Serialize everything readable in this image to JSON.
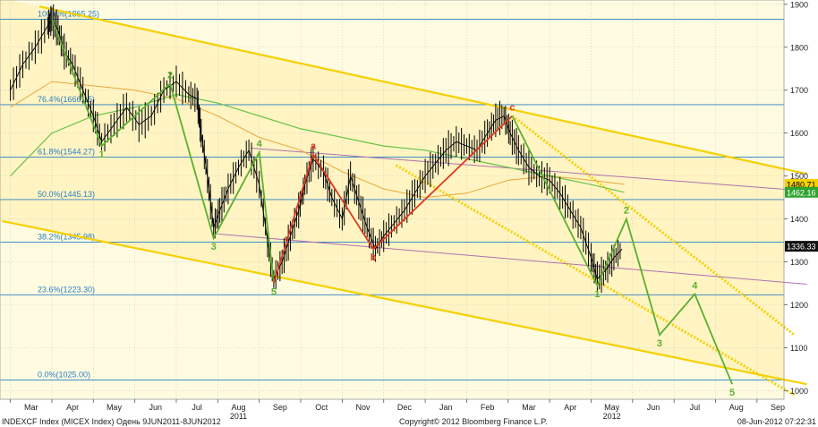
{
  "colors": {
    "background": "#fffbe0",
    "channel_fill": "#fff2b8",
    "channel_line": "#f5d000",
    "fib_line": "#2a7fc4",
    "fib_text": "#2a7fc4",
    "grid": "#c8c8c8",
    "price": "#000000",
    "impulse_wave": "#5ab02e",
    "corrective_wave": "#e03a20",
    "ma_green": "#6ac24a",
    "ma_orange": "#e8a838",
    "trend_purple": "#b070b0",
    "label_dark": "#ffffff",
    "label_dark_bg": "#111111",
    "label_green_bg": "#2fa32f",
    "label_yellow_bg": "#f5d000"
  },
  "chart_data": {
    "type": "line",
    "title": "",
    "ylim": [
      980,
      1910
    ],
    "y_ticks": [
      "1900",
      "1800",
      "1700",
      "1600",
      "1500",
      "1400",
      "1300",
      "1200",
      "1100",
      "1000"
    ],
    "x_tick_labels": [
      "Mar",
      "Apr",
      "May",
      "Jun",
      "Jul",
      "Aug",
      "Sep",
      "Oct",
      "Nov",
      "Dec",
      "Jan",
      "Feb",
      "Mar",
      "Apr",
      "May",
      "Jun",
      "Jul",
      "Aug",
      "Sep"
    ],
    "x_tick_months": [
      0,
      1,
      2,
      3,
      4,
      5,
      6,
      7,
      8,
      9,
      10,
      11,
      12,
      13,
      14,
      15,
      16,
      17,
      18
    ],
    "year_labels": [
      {
        "label": "2011",
        "month": 5
      },
      {
        "label": "2012",
        "month": 14
      }
    ],
    "fib_levels": [
      {
        "label": "100.0%(1865.25)",
        "value": 1865.25
      },
      {
        "label": "76.4%(1666.15)",
        "value": 1666.15
      },
      {
        "label": "61.8%(1544.27)",
        "value": 1544.27
      },
      {
        "label": "50.0%(1445.13)",
        "value": 1445.13
      },
      {
        "label": "38.2%(1345.98)",
        "value": 1345.98
      },
      {
        "label": "23.6%(1223.30)",
        "value": 1223.3
      },
      {
        "label": "0.0%(1025.00)",
        "value": 1025.0
      }
    ],
    "price_labels": [
      {
        "label": "1480.71",
        "value": 1480.71,
        "style": "yellow"
      },
      {
        "label": "1462.16",
        "value": 1462.16,
        "style": "green"
      },
      {
        "label": "1336.33",
        "value": 1336.33,
        "style": "dark"
      }
    ],
    "series": [
      {
        "x": [
          0.0,
          0.3,
          0.6,
          0.9,
          1.0,
          1.15,
          1.3,
          1.5,
          1.75,
          2.0,
          2.2,
          2.5,
          2.8,
          3.1,
          3.4,
          3.7,
          4.0,
          4.3,
          4.5,
          4.6,
          4.75,
          4.9,
          5.05,
          5.25,
          5.5,
          5.75,
          6.0,
          6.2,
          6.35,
          6.55,
          6.75,
          6.95,
          7.1,
          7.3,
          7.55,
          7.75,
          8.0,
          8.2,
          8.4,
          8.6,
          8.8,
          9.0,
          9.25,
          9.5,
          9.75,
          10.0,
          10.25,
          10.5,
          10.75,
          11.0,
          11.25,
          11.5,
          11.7,
          11.9,
          12.05,
          12.25,
          12.5,
          12.75,
          13.0,
          13.25,
          13.5,
          13.75,
          14.0,
          14.15,
          14.35,
          14.55,
          14.75
        ],
        "values": [
          1700,
          1760,
          1800,
          1850,
          1865,
          1840,
          1790,
          1760,
          1700,
          1640,
          1580,
          1620,
          1660,
          1620,
          1640,
          1700,
          1720,
          1690,
          1680,
          1600,
          1500,
          1380,
          1420,
          1470,
          1520,
          1560,
          1480,
          1350,
          1260,
          1300,
          1360,
          1420,
          1480,
          1540,
          1510,
          1450,
          1400,
          1500,
          1440,
          1380,
          1330,
          1360,
          1390,
          1420,
          1460,
          1500,
          1530,
          1560,
          1580,
          1570,
          1560,
          1600,
          1630,
          1640,
          1600,
          1560,
          1520,
          1500,
          1490,
          1460,
          1420,
          1380,
          1310,
          1260,
          1280,
          1310,
          1330
        ]
      },
      {
        "x": [
          0.0,
          1.0,
          2.0,
          3.0,
          4.0,
          5.0,
          6.0,
          7.0,
          8.0,
          9.0,
          10.0,
          11.0,
          12.0,
          13.0,
          14.0,
          14.8
        ],
        "values": [
          1500,
          1600,
          1640,
          1660,
          1690,
          1670,
          1640,
          1610,
          1590,
          1570,
          1560,
          1540,
          1520,
          1500,
          1480,
          1462.16
        ]
      },
      {
        "x": [
          0.0,
          1.0,
          2.0,
          3.0,
          4.0,
          5.0,
          6.0,
          7.0,
          8.0,
          9.0,
          10.0,
          11.0,
          12.0,
          13.0,
          14.0,
          14.8
        ],
        "values": [
          1660,
          1720,
          1710,
          1700,
          1680,
          1640,
          1590,
          1560,
          1510,
          1470,
          1450,
          1460,
          1490,
          1500,
          1490,
          1480.71
        ]
      }
    ],
    "impulse_wave_1": {
      "x": [
        1.0,
        2.2,
        3.85,
        4.9,
        6.0,
        6.35
      ],
      "values": [
        1865,
        1570,
        1715,
        1355,
        1555,
        1250
      ],
      "labels": [
        "",
        "1",
        "2",
        "3",
        "4",
        "5"
      ]
    },
    "corrective_wave": {
      "x": [
        6.35,
        7.3,
        8.75,
        12.1
      ],
      "values": [
        1250,
        1550,
        1330,
        1640
      ],
      "labels": [
        "",
        "a",
        "b",
        "c"
      ]
    },
    "impulse_wave_2": {
      "x": [
        12.1,
        14.15,
        14.85,
        15.65,
        16.5,
        17.4
      ],
      "values": [
        1640,
        1245,
        1400,
        1130,
        1225,
        1015
      ],
      "labels": [
        "",
        "1",
        "2",
        "3",
        "4",
        "5"
      ]
    },
    "channel_upper": {
      "x": [
        0.7,
        19.2
      ],
      "values": [
        1895,
        1505
      ]
    },
    "channel_lower": {
      "x": [
        -0.2,
        19.2
      ],
      "values": [
        1395,
        1015
      ]
    },
    "dotted_line_1": {
      "x": [
        12.1,
        18.9
      ],
      "values": [
        1640,
        1130
      ]
    },
    "dotted_line_2": {
      "x": [
        9.3,
        18.9
      ],
      "values": [
        1525,
        990
      ]
    },
    "purple_line_1": {
      "x": [
        5.8,
        19.2
      ],
      "values": [
        1565,
        1465
      ]
    },
    "purple_line_2": {
      "x": [
        5.0,
        19.2
      ],
      "values": [
        1365,
        1248
      ]
    }
  },
  "footer": {
    "left": "INDEXCF Index (MICEX Index) Одень 9JUN2011-8JUN2012",
    "center": "Copyright© 2012 Bloomberg Finance L.P.",
    "right": "08-Jun-2012 07:22:31"
  }
}
